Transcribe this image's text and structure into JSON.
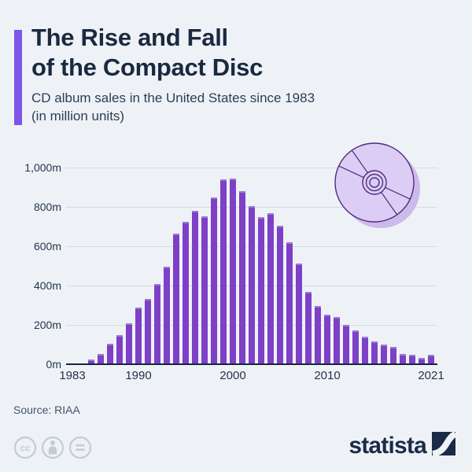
{
  "header": {
    "title_line1": "The Rise and Fall",
    "title_line2": "of the Compact Disc",
    "subtitle_line1": "CD album sales in the United States since 1983",
    "subtitle_line2": "(in million units)"
  },
  "chart_data": {
    "type": "bar",
    "title": "CD album sales in the United States since 1983 (in million units)",
    "unit": "million units",
    "grid": true,
    "ylim": [
      0,
      1000
    ],
    "bar_color": "#7e40c6",
    "categories": [
      1983,
      1984,
      1985,
      1986,
      1987,
      1988,
      1989,
      1990,
      1991,
      1992,
      1993,
      1994,
      1995,
      1996,
      1997,
      1998,
      1999,
      2000,
      2001,
      2002,
      2003,
      2004,
      2005,
      2006,
      2007,
      2008,
      2009,
      2010,
      2011,
      2012,
      2013,
      2014,
      2015,
      2016,
      2017,
      2018,
      2019,
      2020,
      2021
    ],
    "values": [
      0.8,
      5.8,
      22.6,
      53.0,
      102.1,
      149.7,
      207.2,
      286.5,
      333.3,
      407.5,
      495.4,
      662.1,
      722.9,
      778.9,
      753.1,
      847.0,
      938.9,
      942.5,
      881.9,
      803.3,
      746.0,
      767.0,
      705.4,
      619.7,
      511.1,
      368.4,
      296.6,
      253.0,
      240.8,
      198.2,
      172.2,
      140.8,
      117.3,
      99.4,
      87.6,
      52.0,
      47.5,
      31.6,
      46.6
    ],
    "y_ticks": [
      {
        "label": "1,000m",
        "value": 1000
      },
      {
        "label": "800m",
        "value": 800
      },
      {
        "label": "600m",
        "value": 600
      },
      {
        "label": "400m",
        "value": 400
      },
      {
        "label": "200m",
        "value": 200
      },
      {
        "label": "0m",
        "value": 0
      }
    ],
    "x_ticks": [
      {
        "label": "1983",
        "index": 0
      },
      {
        "label": "1990",
        "index": 7
      },
      {
        "label": "2000",
        "index": 17
      },
      {
        "label": "2010",
        "index": 27
      },
      {
        "label": "2021",
        "index": 38
      }
    ]
  },
  "colors": {
    "background": "#eef2f7",
    "accent_bar": "#7d55e8",
    "bar": "#7e40c6",
    "title": "#1b2940",
    "gridline": "#d7dce1",
    "baseline": "#16263c",
    "cd_fill": "#dccdf4",
    "cd_shadow": "#cdb9ea",
    "cd_stroke": "#4e2c7e",
    "brand_navy": "#1a2b47"
  },
  "footer": {
    "source": "Source: RIAA",
    "brand": "statista"
  }
}
